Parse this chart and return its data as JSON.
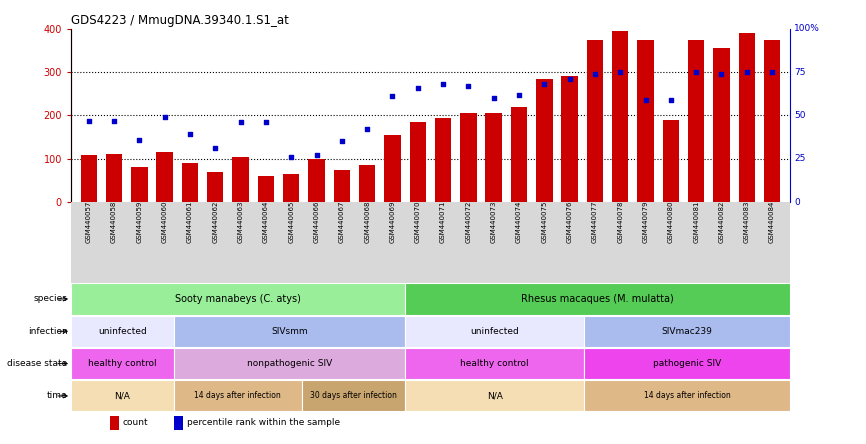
{
  "title": "GDS4223 / MmugDNA.39340.1.S1_at",
  "samples": [
    "GSM440057",
    "GSM440058",
    "GSM440059",
    "GSM440060",
    "GSM440061",
    "GSM440062",
    "GSM440063",
    "GSM440064",
    "GSM440065",
    "GSM440066",
    "GSM440067",
    "GSM440068",
    "GSM440069",
    "GSM440070",
    "GSM440071",
    "GSM440072",
    "GSM440073",
    "GSM440074",
    "GSM440075",
    "GSM440076",
    "GSM440077",
    "GSM440078",
    "GSM440079",
    "GSM440080",
    "GSM440081",
    "GSM440082",
    "GSM440083",
    "GSM440084"
  ],
  "counts": [
    108,
    110,
    80,
    115,
    90,
    70,
    105,
    60,
    65,
    100,
    75,
    85,
    155,
    185,
    195,
    205,
    205,
    220,
    285,
    290,
    375,
    395,
    375,
    190,
    375,
    355,
    390,
    375
  ],
  "percentile_ranks": [
    47,
    47,
    36,
    49,
    39,
    31,
    46,
    46,
    26,
    27,
    35,
    42,
    61,
    66,
    68,
    67,
    60,
    62,
    68,
    71,
    74,
    75,
    59,
    59,
    75,
    74,
    75,
    75
  ],
  "bar_color": "#cc0000",
  "dot_color": "#0000cc",
  "ylim_left": [
    0,
    400
  ],
  "ylim_right": [
    0,
    100
  ],
  "yticks_left": [
    0,
    100,
    200,
    300,
    400
  ],
  "yticks_right": [
    0,
    25,
    50,
    75,
    100
  ],
  "species_labels": [
    "Sooty manabeys (C. atys)",
    "Rhesus macaques (M. mulatta)"
  ],
  "species_ranges": [
    [
      0,
      13
    ],
    [
      13,
      28
    ]
  ],
  "species_colors": [
    "#99ee99",
    "#55cc55"
  ],
  "infection_blocks": [
    {
      "label": "uninfected",
      "start": 0,
      "end": 4,
      "color": "#e8e8ff"
    },
    {
      "label": "SIVsmm",
      "start": 4,
      "end": 13,
      "color": "#aabbee"
    },
    {
      "label": "uninfected",
      "start": 13,
      "end": 20,
      "color": "#e8e8ff"
    },
    {
      "label": "SIVmac239",
      "start": 20,
      "end": 28,
      "color": "#aabbee"
    }
  ],
  "disease_blocks": [
    {
      "label": "healthy control",
      "start": 0,
      "end": 4,
      "color": "#ee66ee"
    },
    {
      "label": "nonpathogenic SIV",
      "start": 4,
      "end": 13,
      "color": "#ddaadd"
    },
    {
      "label": "healthy control",
      "start": 13,
      "end": 20,
      "color": "#ee66ee"
    },
    {
      "label": "pathogenic SIV",
      "start": 20,
      "end": 28,
      "color": "#ee44ee"
    }
  ],
  "time_blocks": [
    {
      "label": "N/A",
      "start": 0,
      "end": 4,
      "color": "#f5deb3"
    },
    {
      "label": "14 days after infection",
      "start": 4,
      "end": 9,
      "color": "#deb887"
    },
    {
      "label": "30 days after infection",
      "start": 9,
      "end": 13,
      "color": "#c8a46e"
    },
    {
      "label": "N/A",
      "start": 13,
      "end": 20,
      "color": "#f5deb3"
    },
    {
      "label": "14 days after infection",
      "start": 20,
      "end": 28,
      "color": "#deb887"
    }
  ],
  "row_labels": [
    "species",
    "infection",
    "disease state",
    "time"
  ],
  "chart_bg": "#f5f5f5",
  "xtick_bg": "#d8d8d8"
}
